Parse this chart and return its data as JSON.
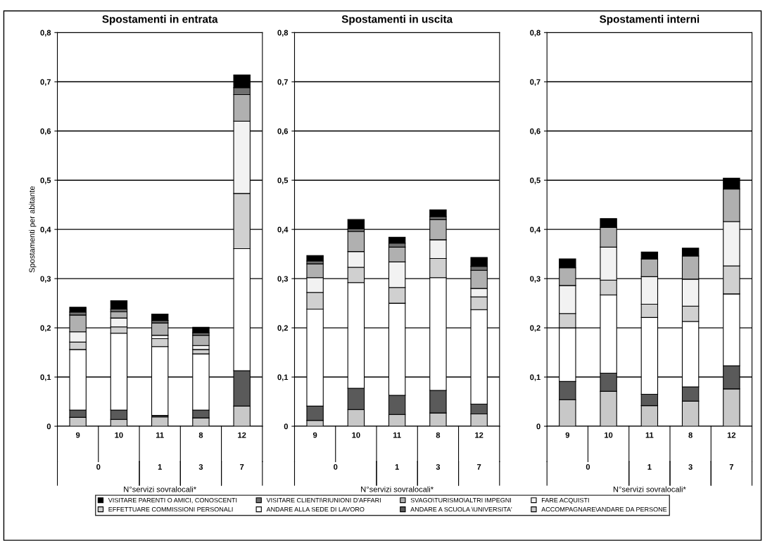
{
  "chart_data": [
    {
      "type": "bar",
      "stacked": true,
      "title": "Spostamenti in entrata",
      "ylabel": "Spostamenti per abitante",
      "xlabel": "N°servizi sovralocali*",
      "categories": [
        "9",
        "10",
        "11",
        "8",
        "12"
      ],
      "annotations": [
        "0",
        "1",
        "3",
        "7"
      ],
      "ylim": [
        0,
        0.8
      ],
      "yticks": [
        0,
        {
          "value": 0.1,
          "label": "0,1"
        },
        {
          "value": 0.2,
          "label": "0,2"
        },
        {
          "value": 0.3,
          "label": "0,3"
        },
        {
          "value": 0.4,
          "label": "0,4"
        },
        {
          "value": 0.5,
          "label": "0,5"
        },
        {
          "value": 0.6,
          "label": "0,6"
        },
        {
          "value": 0.7,
          "label": "0,7"
        },
        {
          "value": 0.8,
          "label": "0,8"
        }
      ],
      "grid": "y",
      "legend": "bottom",
      "series": [
        {
          "name": "ACCOMPAGNARE\\ANDARE DA PERSONE",
          "color": "#c8c8c8",
          "values": [
            0.018,
            0.014,
            0.019,
            0.017,
            0.041
          ]
        },
        {
          "name": "ANDARE A SCUOLA \\UNIVERSITA'",
          "color": "#5a5a5a",
          "values": [
            0.015,
            0.019,
            0.003,
            0.016,
            0.072
          ]
        },
        {
          "name": "ANDARE ALLA SEDE DI LAVORO",
          "color": "#ffffff",
          "values": [
            0.123,
            0.156,
            0.14,
            0.114,
            0.248
          ]
        },
        {
          "name": "EFFETTUARE COMMISSIONI PERSONALI",
          "color": "#d0d0d0",
          "values": [
            0.015,
            0.013,
            0.016,
            0.009,
            0.112
          ]
        },
        {
          "name": "FARE ACQUISTI",
          "color": "#f2f2f2",
          "values": [
            0.021,
            0.018,
            0.007,
            0.008,
            0.147
          ]
        },
        {
          "name": "SVAGO\\TURISMO\\ALTRI IMPEGNI",
          "color": "#b0b0b0",
          "values": [
            0.034,
            0.013,
            0.025,
            0.021,
            0.054
          ]
        },
        {
          "name": "VISITARE CLIENTI\\RIUNIONI D'AFFARI",
          "color": "#707070",
          "values": [
            0.006,
            0.005,
            0.005,
            0.005,
            0.014
          ]
        },
        {
          "name": "VISITARE PARENTI O AMICI, CONOSCENTI",
          "color": "#000000",
          "values": [
            0.01,
            0.017,
            0.013,
            0.011,
            0.026
          ]
        }
      ]
    },
    {
      "type": "bar",
      "stacked": true,
      "title": "Spostamenti in uscita",
      "xlabel": "N°servizi sovralocali*",
      "categories": [
        "9",
        "10",
        "11",
        "8",
        "12"
      ],
      "annotations": [
        "0",
        "1",
        "3",
        "7"
      ],
      "ylim": [
        0,
        0.8
      ],
      "yticks": [
        0,
        {
          "value": 0.1,
          "label": "0,1"
        },
        {
          "value": 0.2,
          "label": "0,2"
        },
        {
          "value": 0.3,
          "label": "0,3"
        },
        {
          "value": 0.4,
          "label": "0,4"
        },
        {
          "value": 0.5,
          "label": "0,5"
        },
        {
          "value": 0.6,
          "label": "0,6"
        },
        {
          "value": 0.7,
          "label": "0,7"
        },
        {
          "value": 0.8,
          "label": "0,8"
        }
      ],
      "grid": "y",
      "series": [
        {
          "color": "#c8c8c8",
          "values": [
            0.012,
            0.034,
            0.024,
            0.027,
            0.025
          ]
        },
        {
          "color": "#5a5a5a",
          "values": [
            0.029,
            0.043,
            0.039,
            0.046,
            0.02
          ]
        },
        {
          "color": "#ffffff",
          "values": [
            0.197,
            0.215,
            0.187,
            0.229,
            0.192
          ]
        },
        {
          "color": "#d0d0d0",
          "values": [
            0.034,
            0.031,
            0.032,
            0.039,
            0.026
          ]
        },
        {
          "color": "#f2f2f2",
          "values": [
            0.03,
            0.032,
            0.052,
            0.038,
            0.017
          ]
        },
        {
          "color": "#b0b0b0",
          "values": [
            0.028,
            0.041,
            0.03,
            0.041,
            0.037
          ]
        },
        {
          "color": "#707070",
          "values": [
            0.006,
            0.005,
            0.008,
            0.006,
            0.008
          ]
        },
        {
          "color": "#000000",
          "values": [
            0.011,
            0.019,
            0.012,
            0.014,
            0.018
          ]
        }
      ]
    },
    {
      "type": "bar",
      "stacked": true,
      "title": "Spostamenti interni",
      "xlabel": "N°servizi sovralocali*",
      "categories": [
        "9",
        "10",
        "11",
        "8",
        "12"
      ],
      "annotations": [
        "0",
        "1",
        "3",
        "7"
      ],
      "ylim": [
        0,
        0.8
      ],
      "yticks": [
        0,
        {
          "value": 0.1,
          "label": "0,1"
        },
        {
          "value": 0.2,
          "label": "0,2"
        },
        {
          "value": 0.3,
          "label": "0,3"
        },
        {
          "value": 0.4,
          "label": "0,4"
        },
        {
          "value": 0.5,
          "label": "0,5"
        },
        {
          "value": 0.6,
          "label": "0,6"
        },
        {
          "value": 0.7,
          "label": "0,7"
        },
        {
          "value": 0.8,
          "label": "0,8"
        }
      ],
      "grid": "y",
      "series": [
        {
          "color": "#c8c8c8",
          "values": [
            0.054,
            0.071,
            0.042,
            0.051,
            0.076
          ]
        },
        {
          "color": "#5a5a5a",
          "values": [
            0.037,
            0.037,
            0.023,
            0.029,
            0.047
          ]
        },
        {
          "color": "#ffffff",
          "values": [
            0.109,
            0.159,
            0.156,
            0.133,
            0.146
          ]
        },
        {
          "color": "#d0d0d0",
          "values": [
            0.029,
            0.03,
            0.027,
            0.031,
            0.057
          ]
        },
        {
          "color": "#f2f2f2",
          "values": [
            0.057,
            0.067,
            0.056,
            0.055,
            0.09
          ]
        },
        {
          "color": "#b0b0b0",
          "values": [
            0.036,
            0.04,
            0.036,
            0.047,
            0.066
          ]
        },
        {
          "color": "#707070",
          "values": [
            null,
            null,
            null,
            null,
            null
          ]
        },
        {
          "color": "#000000",
          "values": [
            0.018,
            0.018,
            0.014,
            0.016,
            0.022
          ]
        }
      ]
    }
  ]
}
